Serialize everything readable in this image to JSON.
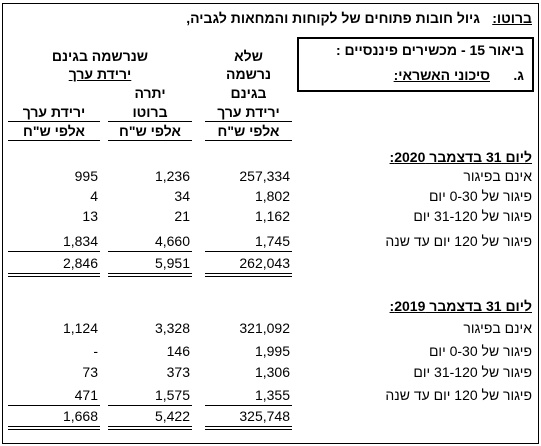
{
  "header": {
    "title": "גיול חובות פתוחים של לקוחות והמחאות לגביה,",
    "title_underlined": "ברוטו:"
  },
  "note_box": {
    "line1": "ביאור 15  -  מכשירים פיננסיים :",
    "letter": "ג.",
    "subject": "סיכוני האשראי:"
  },
  "columns": {
    "group": [
      "שנרשמה בגינם",
      "ירידת ערך"
    ],
    "col1": [
      "שלא",
      "נרשמה",
      "בגינם",
      "ירידת ערך"
    ],
    "col2": [
      "יתרה",
      "ברוטו"
    ],
    "col3": [
      "ירידת ערך"
    ],
    "units": [
      "אלפי ש\"ח",
      "אלפי ש\"ח",
      "אלפי ש\"ח"
    ]
  },
  "sections": [
    {
      "title": "ליום 31 בדצמבר 2020:",
      "rows": [
        {
          "label": "אינם בפיגור",
          "values": [
            "257,334",
            "1,236",
            "995"
          ]
        },
        {
          "label": "פיגור של 0-30 יום",
          "values": [
            "1,802",
            "34",
            "4"
          ]
        },
        {
          "label": "פיגור של 31-120 יום",
          "values": [
            "1,162",
            "21",
            "13"
          ]
        },
        {
          "label": "פיגור של 120 יום עד שנה",
          "values": [
            "1,745",
            "4,660",
            "1,834"
          ]
        }
      ],
      "total": [
        "262,043",
        "5,951",
        "2,846"
      ]
    },
    {
      "title": "ליום 31 בדצמבר 2019:",
      "rows": [
        {
          "label": "אינם בפיגור",
          "values": [
            "321,092",
            "3,328",
            "1,124"
          ]
        },
        {
          "label": "פיגור של 0-30 יום",
          "values": [
            "1,995",
            "146",
            "-"
          ]
        },
        {
          "label": "פיגור של 31-120 יום",
          "values": [
            "1,306",
            "373",
            "73"
          ]
        },
        {
          "label": "פיגור של 120 יום עד שנה",
          "values": [
            "1,355",
            "1,575",
            "471"
          ]
        }
      ],
      "total": [
        "325,748",
        "5,422",
        "1,668"
      ]
    }
  ]
}
